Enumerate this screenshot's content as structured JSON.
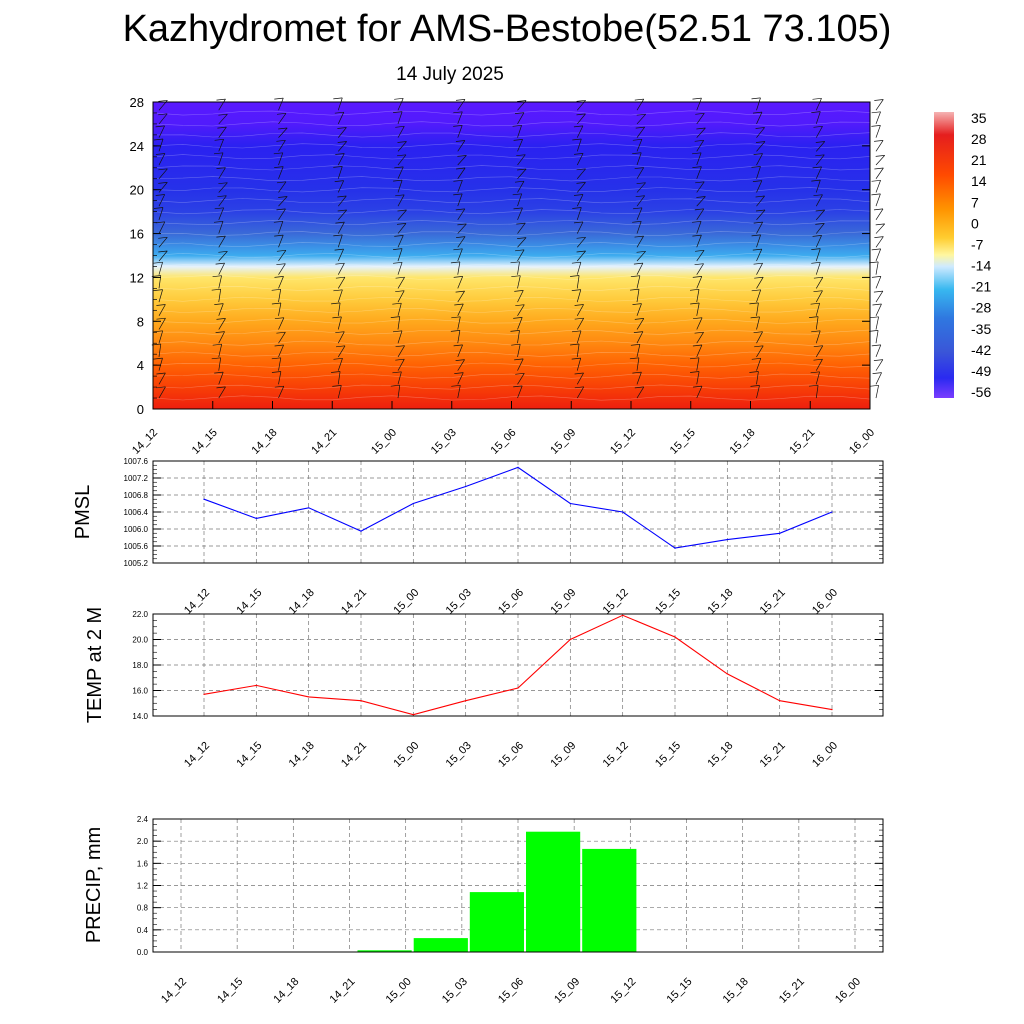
{
  "title": "Kazhydromet for AMS-Bestobe(52.51 73.105)",
  "subtitle": "14 July 2025",
  "colors": {
    "pmsl_line": "#0000ff",
    "temp_line": "#ff0000",
    "precip_bar": "#00ff00",
    "grid": "#777777"
  },
  "chart_data": [
    {
      "type": "heatmap",
      "title": "",
      "xlabel": "",
      "ylabel": "",
      "x": [
        "14_12",
        "14_15",
        "14_18",
        "14_21",
        "15_00",
        "15_03",
        "15_06",
        "15_09",
        "15_12",
        "15_15",
        "15_18",
        "15_21",
        "16_00"
      ],
      "ylim": [
        0,
        28
      ],
      "yticks": [
        "0",
        "4",
        "8",
        "12",
        "16",
        "20",
        "24",
        "28"
      ],
      "colorbar_ticks": [
        "35",
        "28",
        "21",
        "14",
        "7",
        "0",
        "-7",
        "-14",
        "-21",
        "-28",
        "-35",
        "-42",
        "-49",
        "-56"
      ],
      "temperature_profile_degC": [
        {
          "height": 0,
          "value": 21
        },
        {
          "height": 2,
          "value": 17
        },
        {
          "height": 4,
          "value": 13
        },
        {
          "height": 6,
          "value": 8
        },
        {
          "height": 8,
          "value": 3
        },
        {
          "height": 10,
          "value": -2
        },
        {
          "height": 12,
          "value": -7
        },
        {
          "height": 13,
          "value": -14
        },
        {
          "height": 14,
          "value": -25
        },
        {
          "height": 16,
          "value": -40
        },
        {
          "height": 18,
          "value": -48
        },
        {
          "height": 20,
          "value": -50
        },
        {
          "height": 24,
          "value": -53
        },
        {
          "height": 26,
          "value": -57
        },
        {
          "height": 28,
          "value": -58
        }
      ],
      "wind_barbs": true
    },
    {
      "type": "line",
      "title": "",
      "ylabel": "PMSL",
      "x": [
        "14_12",
        "14_15",
        "14_18",
        "14_21",
        "15_00",
        "15_03",
        "15_06",
        "15_09",
        "15_12",
        "15_15",
        "15_18",
        "15_21",
        "16_00"
      ],
      "values": [
        1006.7,
        1006.25,
        1006.5,
        1005.95,
        1006.6,
        1007.0,
        1007.45,
        1006.6,
        1006.4,
        1005.55,
        1005.75,
        1005.9,
        1006.4
      ],
      "ylim": [
        1005.2,
        1007.6
      ],
      "yticks": [
        "1005.2",
        "1005.6",
        "1006.0",
        "1006.4",
        "1006.8",
        "1007.2",
        "1007.6"
      ],
      "grid": true
    },
    {
      "type": "line",
      "title": "",
      "ylabel": "TEMP at 2 M",
      "x": [
        "14_12",
        "14_15",
        "14_18",
        "14_21",
        "15_00",
        "15_03",
        "15_06",
        "15_09",
        "15_12",
        "15_15",
        "15_18",
        "15_21",
        "16_00"
      ],
      "values": [
        15.7,
        16.4,
        15.5,
        15.2,
        14.1,
        15.2,
        16.2,
        20.0,
        21.9,
        20.2,
        17.3,
        15.2,
        14.5
      ],
      "ylim": [
        14.0,
        22.0
      ],
      "yticks": [
        "14.0",
        "16.0",
        "18.0",
        "20.0",
        "22.0"
      ],
      "grid": true
    },
    {
      "type": "bar",
      "title": "",
      "ylabel": "PRECIP, mm",
      "categories": [
        "14_12",
        "14_15",
        "14_18",
        "14_21",
        "15_00",
        "15_03",
        "15_06",
        "15_09",
        "15_12",
        "15_15",
        "15_18",
        "15_21",
        "16_00"
      ],
      "values": [
        0,
        0,
        0,
        0.03,
        0.25,
        1.08,
        2.17,
        1.86,
        0,
        0,
        0,
        0,
        0
      ],
      "ylim": [
        0,
        2.4
      ],
      "yticks": [
        "0.0",
        "0.4",
        "0.8",
        "1.2",
        "1.6",
        "2.0",
        "2.4"
      ],
      "grid": true
    }
  ]
}
